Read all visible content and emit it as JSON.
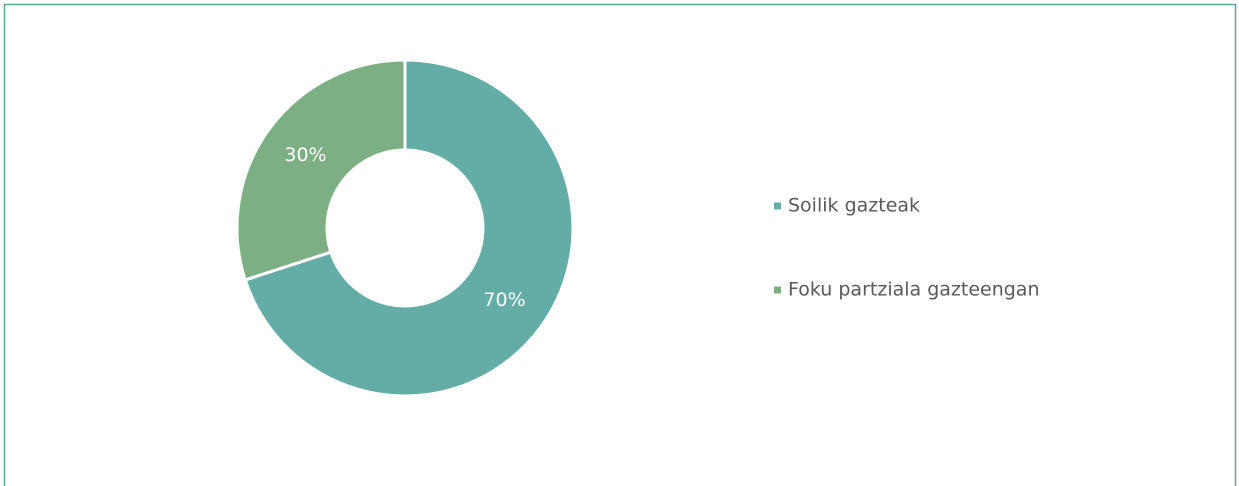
{
  "chart_data": {
    "type": "donut",
    "categories": [
      "Soilik gazteak",
      "Foku partziala gazteengan"
    ],
    "values": [
      70,
      30
    ],
    "value_labels": [
      "70%",
      "30%"
    ],
    "colors": [
      "#64ada6",
      "#7daf84"
    ],
    "legend": "right"
  }
}
